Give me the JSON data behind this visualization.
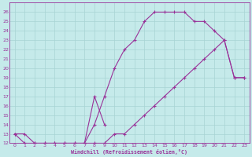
{
  "xlabel": "Windchill (Refroidissement éolien,°C)",
  "xlim": [
    -0.5,
    23.5
  ],
  "ylim": [
    12,
    27
  ],
  "xticks": [
    0,
    1,
    2,
    3,
    4,
    5,
    6,
    7,
    8,
    9,
    10,
    11,
    12,
    13,
    14,
    15,
    16,
    17,
    18,
    19,
    20,
    21,
    22,
    23
  ],
  "yticks": [
    12,
    13,
    14,
    15,
    16,
    17,
    18,
    19,
    20,
    21,
    22,
    23,
    24,
    25,
    26
  ],
  "bg_color": "#c5eaea",
  "grid_color": "#a8d4d4",
  "line_color": "#993399",
  "line1_x": [
    0,
    1,
    2,
    3,
    4,
    5,
    6,
    7,
    8,
    9,
    10,
    11,
    12,
    13,
    14,
    15,
    16,
    17,
    18,
    19,
    20,
    21,
    22,
    23
  ],
  "line1_y": [
    13,
    13,
    12,
    12,
    12,
    12,
    12,
    12,
    14,
    17,
    20,
    22,
    23,
    25,
    26,
    26,
    26,
    26,
    25,
    25,
    24,
    23,
    19,
    19
  ],
  "line2_x": [
    0,
    1,
    2,
    3,
    4,
    5,
    6,
    7,
    8,
    9,
    10,
    11,
    12,
    13,
    14,
    15,
    16,
    17,
    18,
    19,
    20,
    21,
    22,
    23
  ],
  "line2_y": [
    13,
    12,
    12,
    12,
    12,
    12,
    12,
    12,
    12,
    12,
    13,
    13,
    14,
    15,
    16,
    17,
    18,
    19,
    20,
    21,
    22,
    23,
    19,
    19
  ],
  "line3_x": [
    7,
    8,
    9
  ],
  "line3_y": [
    12,
    17,
    14
  ]
}
